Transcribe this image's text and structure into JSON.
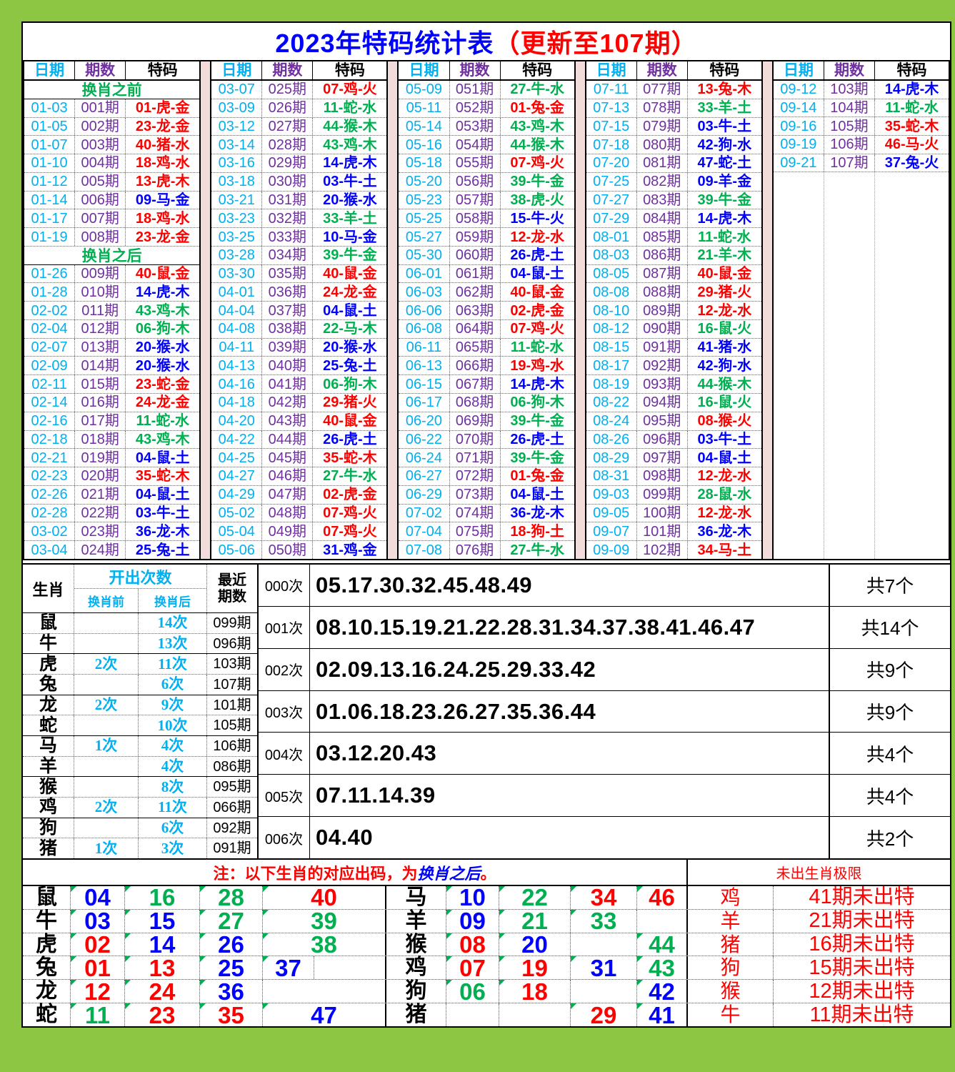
{
  "title": {
    "main": "2023年特码统计表",
    "update": "（更新至107期）"
  },
  "col_headers": {
    "date": "日期",
    "period": "期数",
    "code": "特码"
  },
  "palette": {
    "red": "#FF0000",
    "green": "#00B050",
    "blue": "#0000FF",
    "cyan": "#00B0F0",
    "purple": "#7030A0",
    "page_green": "#8CC642",
    "gap_pink": "#F2DCDB"
  },
  "top_tables": [
    {
      "fixed": false,
      "rows": [
        {
          "sec": "换肖之前"
        },
        [
          "01-03",
          "001期",
          "01-虎-金",
          "r"
        ],
        [
          "01-05",
          "002期",
          "23-龙-金",
          "r"
        ],
        [
          "01-07",
          "003期",
          "40-猪-水",
          "r"
        ],
        [
          "01-10",
          "004期",
          "18-鸡-水",
          "r"
        ],
        [
          "01-12",
          "005期",
          "13-虎-木",
          "r"
        ],
        [
          "01-14",
          "006期",
          "09-马-金",
          "b"
        ],
        [
          "01-17",
          "007期",
          "18-鸡-水",
          "r"
        ],
        [
          "01-19",
          "008期",
          "23-龙-金",
          "r"
        ],
        {
          "sec": "换肖之后"
        },
        [
          "01-26",
          "009期",
          "40-鼠-金",
          "r"
        ],
        [
          "01-28",
          "010期",
          "14-虎-木",
          "b"
        ],
        [
          "02-02",
          "011期",
          "43-鸡-木",
          "g"
        ],
        [
          "02-04",
          "012期",
          "06-狗-木",
          "g"
        ],
        [
          "02-07",
          "013期",
          "20-猴-水",
          "b"
        ],
        [
          "02-09",
          "014期",
          "20-猴-水",
          "b"
        ],
        [
          "02-11",
          "015期",
          "23-蛇-金",
          "r"
        ],
        [
          "02-14",
          "016期",
          "24-龙-金",
          "r"
        ],
        [
          "02-16",
          "017期",
          "11-蛇-水",
          "g"
        ],
        [
          "02-18",
          "018期",
          "43-鸡-木",
          "g"
        ],
        [
          "02-21",
          "019期",
          "04-鼠-土",
          "b"
        ],
        [
          "02-23",
          "020期",
          "35-蛇-木",
          "r"
        ],
        [
          "02-26",
          "021期",
          "04-鼠-土",
          "b"
        ],
        [
          "02-28",
          "022期",
          "03-牛-土",
          "b"
        ],
        [
          "03-02",
          "023期",
          "36-龙-木",
          "b"
        ],
        [
          "03-04",
          "024期",
          "25-兔-土",
          "b"
        ]
      ]
    },
    {
      "fixed": false,
      "rows": [
        [
          "03-07",
          "025期",
          "07-鸡-火",
          "r"
        ],
        [
          "03-09",
          "026期",
          "11-蛇-水",
          "g"
        ],
        [
          "03-12",
          "027期",
          "44-猴-木",
          "g"
        ],
        [
          "03-14",
          "028期",
          "43-鸡-木",
          "g"
        ],
        [
          "03-16",
          "029期",
          "14-虎-木",
          "b"
        ],
        [
          "03-18",
          "030期",
          "03-牛-土",
          "b"
        ],
        [
          "03-21",
          "031期",
          "20-猴-水",
          "b"
        ],
        [
          "03-23",
          "032期",
          "33-羊-土",
          "g"
        ],
        [
          "03-25",
          "033期",
          "10-马-金",
          "b"
        ],
        [
          "03-28",
          "034期",
          "39-牛-金",
          "g"
        ],
        [
          "03-30",
          "035期",
          "40-鼠-金",
          "r"
        ],
        [
          "04-01",
          "036期",
          "24-龙-金",
          "r"
        ],
        [
          "04-04",
          "037期",
          "04-鼠-土",
          "b"
        ],
        [
          "04-08",
          "038期",
          "22-马-木",
          "g"
        ],
        [
          "04-11",
          "039期",
          "20-猴-水",
          "b"
        ],
        [
          "04-13",
          "040期",
          "25-兔-土",
          "b"
        ],
        [
          "04-16",
          "041期",
          "06-狗-木",
          "g"
        ],
        [
          "04-18",
          "042期",
          "29-猪-火",
          "r"
        ],
        [
          "04-20",
          "043期",
          "40-鼠-金",
          "r"
        ],
        [
          "04-22",
          "044期",
          "26-虎-土",
          "b"
        ],
        [
          "04-25",
          "045期",
          "35-蛇-木",
          "r"
        ],
        [
          "04-27",
          "046期",
          "27-牛-水",
          "g"
        ],
        [
          "04-29",
          "047期",
          "02-虎-金",
          "r"
        ],
        [
          "05-02",
          "048期",
          "07-鸡-火",
          "r"
        ],
        [
          "05-04",
          "049期",
          "07-鸡-火",
          "r"
        ],
        [
          "05-06",
          "050期",
          "31-鸡-金",
          "b"
        ]
      ]
    },
    {
      "fixed": false,
      "rows": [
        [
          "05-09",
          "051期",
          "27-牛-水",
          "g"
        ],
        [
          "05-11",
          "052期",
          "01-兔-金",
          "r"
        ],
        [
          "05-14",
          "053期",
          "43-鸡-木",
          "g"
        ],
        [
          "05-16",
          "054期",
          "44-猴-木",
          "g"
        ],
        [
          "05-18",
          "055期",
          "07-鸡-火",
          "r"
        ],
        [
          "05-20",
          "056期",
          "39-牛-金",
          "g"
        ],
        [
          "05-23",
          "057期",
          "38-虎-火",
          "g"
        ],
        [
          "05-25",
          "058期",
          "15-牛-火",
          "b"
        ],
        [
          "05-27",
          "059期",
          "12-龙-水",
          "r"
        ],
        [
          "05-30",
          "060期",
          "26-虎-土",
          "b"
        ],
        [
          "06-01",
          "061期",
          "04-鼠-土",
          "b"
        ],
        [
          "06-03",
          "062期",
          "40-鼠-金",
          "r"
        ],
        [
          "06-06",
          "063期",
          "02-虎-金",
          "r"
        ],
        [
          "06-08",
          "064期",
          "07-鸡-火",
          "r"
        ],
        [
          "06-11",
          "065期",
          "11-蛇-水",
          "g"
        ],
        [
          "06-13",
          "066期",
          "19-鸡-水",
          "r"
        ],
        [
          "06-15",
          "067期",
          "14-虎-木",
          "b"
        ],
        [
          "06-17",
          "068期",
          "06-狗-木",
          "g"
        ],
        [
          "06-20",
          "069期",
          "39-牛-金",
          "g"
        ],
        [
          "06-22",
          "070期",
          "26-虎-土",
          "b"
        ],
        [
          "06-24",
          "071期",
          "39-牛-金",
          "g"
        ],
        [
          "06-27",
          "072期",
          "01-兔-金",
          "r"
        ],
        [
          "06-29",
          "073期",
          "04-鼠-土",
          "b"
        ],
        [
          "07-02",
          "074期",
          "36-龙-木",
          "b"
        ],
        [
          "07-04",
          "075期",
          "18-狗-土",
          "r"
        ],
        [
          "07-08",
          "076期",
          "27-牛-水",
          "g"
        ]
      ]
    },
    {
      "fixed": false,
      "rows": [
        [
          "07-11",
          "077期",
          "13-兔-木",
          "r"
        ],
        [
          "07-13",
          "078期",
          "33-羊-土",
          "g"
        ],
        [
          "07-15",
          "079期",
          "03-牛-土",
          "b"
        ],
        [
          "07-18",
          "080期",
          "42-狗-水",
          "b"
        ],
        [
          "07-20",
          "081期",
          "47-蛇-土",
          "b"
        ],
        [
          "07-25",
          "082期",
          "09-羊-金",
          "b"
        ],
        [
          "07-27",
          "083期",
          "39-牛-金",
          "g"
        ],
        [
          "07-29",
          "084期",
          "14-虎-木",
          "b"
        ],
        [
          "08-01",
          "085期",
          "11-蛇-水",
          "g"
        ],
        [
          "08-03",
          "086期",
          "21-羊-木",
          "g"
        ],
        [
          "08-05",
          "087期",
          "40-鼠-金",
          "r"
        ],
        [
          "08-08",
          "088期",
          "29-猪-火",
          "r"
        ],
        [
          "08-10",
          "089期",
          "12-龙-水",
          "r"
        ],
        [
          "08-12",
          "090期",
          "16-鼠-火",
          "g"
        ],
        [
          "08-15",
          "091期",
          "41-猪-水",
          "b"
        ],
        [
          "08-17",
          "092期",
          "42-狗-水",
          "b"
        ],
        [
          "08-19",
          "093期",
          "44-猴-木",
          "g"
        ],
        [
          "08-22",
          "094期",
          "16-鼠-火",
          "g"
        ],
        [
          "08-24",
          "095期",
          "08-猴-火",
          "r"
        ],
        [
          "08-26",
          "096期",
          "03-牛-土",
          "b"
        ],
        [
          "08-29",
          "097期",
          "04-鼠-土",
          "b"
        ],
        [
          "08-31",
          "098期",
          "12-龙-水",
          "r"
        ],
        [
          "09-03",
          "099期",
          "28-鼠-水",
          "g"
        ],
        [
          "09-05",
          "100期",
          "12-龙-水",
          "r"
        ],
        [
          "09-07",
          "101期",
          "36-龙-木",
          "b"
        ],
        [
          "09-09",
          "102期",
          "34-马-土",
          "r"
        ]
      ]
    },
    {
      "fixed": true,
      "rows": [
        [
          "09-12",
          "103期",
          "14-虎-木",
          "b"
        ],
        [
          "09-14",
          "104期",
          "11-蛇-水",
          "g"
        ],
        [
          "09-16",
          "105期",
          "35-蛇-木",
          "r"
        ],
        [
          "09-19",
          "106期",
          "46-马-火",
          "r"
        ],
        [
          "09-21",
          "107期",
          "37-兔-火",
          "b"
        ]
      ]
    }
  ],
  "stats": {
    "zodiac_header": "生肖",
    "count_header": "开出次数",
    "before_header": "换肖前",
    "after_header": "换肖后",
    "recent_line1": "最近",
    "recent_line2": "期数",
    "rows": [
      {
        "z": "鼠",
        "b": "",
        "a": "14次",
        "r": "099期"
      },
      {
        "z": "牛",
        "b": "",
        "a": "13次",
        "r": "096期"
      },
      {
        "z": "虎",
        "b": "2次",
        "a": "11次",
        "r": "103期"
      },
      {
        "z": "兔",
        "b": "",
        "a": "6次",
        "r": "107期"
      },
      {
        "z": "龙",
        "b": "2次",
        "a": "9次",
        "r": "101期"
      },
      {
        "z": "蛇",
        "b": "",
        "a": "10次",
        "r": "105期"
      },
      {
        "z": "马",
        "b": "1次",
        "a": "4次",
        "r": "106期"
      },
      {
        "z": "羊",
        "b": "",
        "a": "4次",
        "r": "086期"
      },
      {
        "z": "猴",
        "b": "",
        "a": "8次",
        "r": "095期"
      },
      {
        "z": "鸡",
        "b": "2次",
        "a": "11次",
        "r": "066期"
      },
      {
        "z": "狗",
        "b": "",
        "a": "6次",
        "r": "092期"
      },
      {
        "z": "猪",
        "b": "1次",
        "a": "3次",
        "r": "091期"
      }
    ],
    "freq_rows": [
      {
        "label": "000次",
        "numbers": "05.17.30.32.45.48.49",
        "count": "共7个"
      },
      {
        "label": "001次",
        "numbers": "08.10.15.19.21.22.28.31.34.37.38.41.46.47",
        "count": "共14个"
      },
      {
        "label": "002次",
        "numbers": "02.09.13.16.24.25.29.33.42",
        "count": "共9个"
      },
      {
        "label": "003次",
        "numbers": "01.06.18.23.26.27.35.36.44",
        "count": "共9个"
      },
      {
        "label": "004次",
        "numbers": "03.12.20.43",
        "count": "共4个"
      },
      {
        "label": "005次",
        "numbers": "07.11.14.39",
        "count": "共4个"
      },
      {
        "label": "006次",
        "numbers": "04.40",
        "count": "共2个"
      }
    ]
  },
  "note": {
    "prefix": "注：以下生肖的对应出码，为",
    "em": "换肖之后",
    "suffix": "。",
    "right": "未出生肖极限"
  },
  "bottom": {
    "left_rows": [
      {
        "z": "鼠",
        "cells": [
          [
            "04",
            "b"
          ],
          [
            "16",
            "g"
          ],
          [
            "28",
            "g"
          ],
          [
            "40",
            "r"
          ]
        ]
      },
      {
        "z": "牛",
        "cells": [
          [
            "03",
            "b"
          ],
          [
            "15",
            "b"
          ],
          [
            "27",
            "g"
          ],
          [
            "39",
            "g"
          ]
        ]
      },
      {
        "z": "虎",
        "cells": [
          [
            "02",
            "r"
          ],
          [
            "14",
            "b"
          ],
          [
            "26",
            "b"
          ],
          [
            "38",
            "g"
          ]
        ]
      },
      {
        "z": "兔",
        "cells": [
          [
            "01",
            "r"
          ],
          [
            "13",
            "r"
          ],
          [
            "25",
            "b"
          ],
          [
            "37",
            "b",
            "split"
          ]
        ]
      },
      {
        "z": "龙",
        "cells": [
          [
            "12",
            "r"
          ],
          [
            "24",
            "r"
          ],
          [
            "36",
            "b"
          ],
          null
        ]
      },
      {
        "z": "蛇",
        "cells": [
          [
            "11",
            "g"
          ],
          [
            "23",
            "r"
          ],
          [
            "35",
            "r"
          ],
          [
            "47",
            "b"
          ]
        ]
      }
    ],
    "right_rows": [
      {
        "z": "马",
        "cells": [
          [
            "10",
            "b"
          ],
          [
            "22",
            "g"
          ],
          [
            "34",
            "r"
          ],
          [
            "46",
            "r"
          ]
        ]
      },
      {
        "z": "羊",
        "cells": [
          [
            "09",
            "b"
          ],
          [
            "21",
            "g"
          ],
          [
            "33",
            "g"
          ],
          null
        ]
      },
      {
        "z": "猴",
        "cells": [
          [
            "08",
            "r"
          ],
          [
            "20",
            "b"
          ],
          null,
          [
            "44",
            "g"
          ]
        ]
      },
      {
        "z": "鸡",
        "cells": [
          [
            "07",
            "r"
          ],
          [
            "19",
            "r"
          ],
          [
            "31",
            "b"
          ],
          [
            "43",
            "g"
          ]
        ]
      },
      {
        "z": "狗",
        "cells": [
          [
            "06",
            "g"
          ],
          [
            "18",
            "r"
          ],
          null,
          [
            "42",
            "b"
          ]
        ]
      },
      {
        "z": "猪",
        "cells": [
          null,
          null,
          [
            "29",
            "r"
          ],
          [
            "41",
            "b"
          ]
        ]
      }
    ],
    "unborn": [
      [
        "鸡",
        "41期未出特"
      ],
      [
        "羊",
        "21期未出特"
      ],
      [
        "猪",
        "16期未出特"
      ],
      [
        "狗",
        "15期未出特"
      ],
      [
        "猴",
        "12期未出特"
      ],
      [
        "牛",
        "11期未出特"
      ]
    ]
  }
}
